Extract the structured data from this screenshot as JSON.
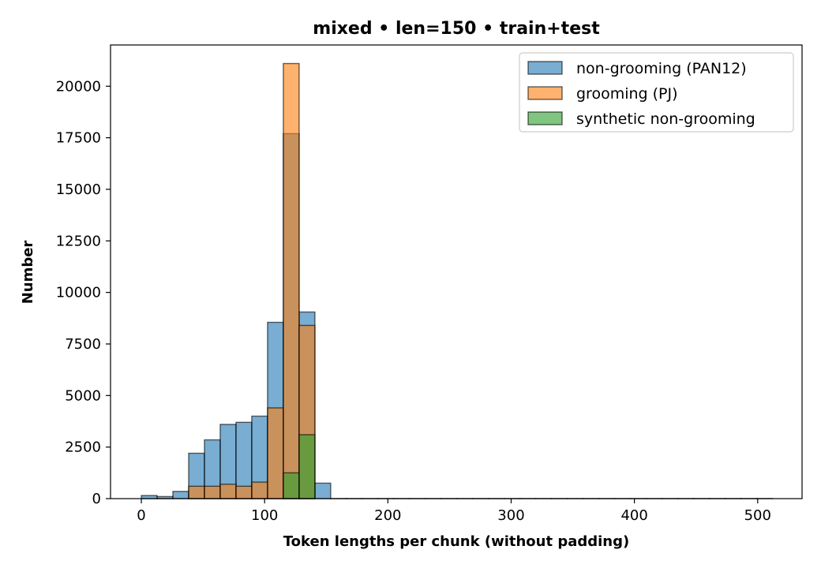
{
  "chart_data": {
    "type": "bar",
    "title": "mixed • len=150 • train+test",
    "xlabel": "Token lengths per chunk (without padding)",
    "ylabel": "Number",
    "xlim": [
      -25,
      536
    ],
    "ylim": [
      0,
      22000
    ],
    "xticks": [
      0,
      100,
      200,
      300,
      400,
      500
    ],
    "yticks": [
      0,
      2500,
      5000,
      7500,
      10000,
      12500,
      15000,
      17500,
      20000
    ],
    "legend_position": "top-right",
    "bin_edges": [
      0,
      12.8,
      25.6,
      38.4,
      51.2,
      64,
      76.8,
      89.6,
      102.4,
      115.2,
      128,
      140.8,
      153.6,
      166.4,
      179.2,
      192,
      204.8,
      217.6,
      230.4,
      243.2,
      256,
      268.8,
      281.6,
      294.4,
      307.2,
      320,
      332.8,
      345.6,
      358.4,
      371.2,
      384,
      396.8,
      409.6,
      422.4,
      435.2,
      448,
      460.8,
      473.6,
      486.4,
      499.2,
      512
    ],
    "series": [
      {
        "name": "non-grooming (PAN12)",
        "color": "#1f77b4",
        "values": [
          150,
          100,
          350,
          2200,
          2850,
          3600,
          3700,
          4000,
          8550,
          17700,
          9050,
          750,
          5,
          5,
          5,
          5,
          5,
          5,
          5,
          5,
          5,
          5,
          5,
          5,
          5,
          5,
          5,
          5,
          5,
          5,
          5,
          5,
          5,
          5,
          5,
          5,
          5,
          5,
          5,
          5
        ]
      },
      {
        "name": "grooming (PJ)",
        "color": "#ff7f0e",
        "values": [
          0,
          0,
          0,
          600,
          600,
          700,
          600,
          800,
          4400,
          21100,
          8400,
          0,
          0,
          0,
          0,
          0,
          0,
          0,
          0,
          0,
          0,
          0,
          0,
          0,
          0,
          0,
          0,
          0,
          0,
          0,
          0,
          0,
          0,
          0,
          0,
          0,
          0,
          0,
          0,
          0
        ]
      },
      {
        "name": "synthetic non-grooming",
        "color": "#2ca02c",
        "values": [
          0,
          0,
          0,
          0,
          0,
          0,
          0,
          0,
          0,
          1250,
          3100,
          0,
          0,
          0,
          0,
          0,
          0,
          0,
          0,
          0,
          0,
          0,
          0,
          0,
          0,
          0,
          0,
          0,
          0,
          0,
          0,
          0,
          0,
          0,
          0,
          0,
          0,
          0,
          0,
          0
        ]
      }
    ]
  }
}
